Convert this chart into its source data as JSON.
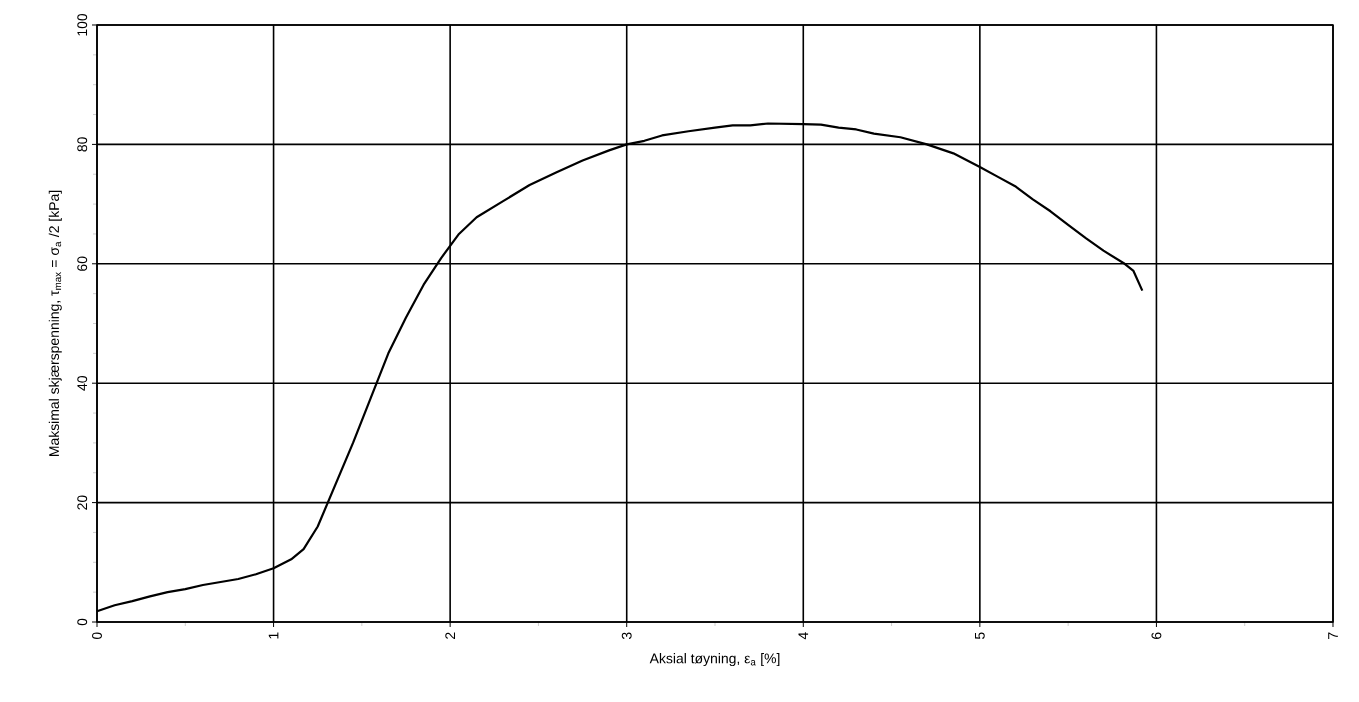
{
  "chart_data": {
    "type": "line",
    "xlabel": "Aksial tøyning, ε$_{a}$ [%]",
    "ylabel": "Maksimal skjærspenning, τ$_{max}$ = σ$_{a}$ /2  [kPa]",
    "xlim": [
      0,
      7
    ],
    "xticks": [
      0,
      1,
      2,
      3,
      4,
      5,
      6,
      7
    ],
    "ylim": [
      0,
      100
    ],
    "yticks": [
      0,
      20,
      40,
      60,
      80,
      100
    ],
    "grid": true,
    "marker": "none",
    "line_style": "solid",
    "series": [
      {
        "color": "#000000",
        "x": [
          0,
          0.1,
          0.2,
          0.3,
          0.4,
          0.5,
          0.6,
          0.7,
          0.8,
          0.9,
          1.0,
          1.1,
          1.17,
          1.25,
          1.35,
          1.45,
          1.55,
          1.65,
          1.75,
          1.85,
          1.95,
          2.05,
          2.15,
          2.3,
          2.45,
          2.6,
          2.75,
          2.9,
          3.0,
          3.1,
          3.2,
          3.35,
          3.5,
          3.6,
          3.7,
          3.8,
          4.0,
          4.1,
          4.2,
          4.3,
          4.4,
          4.55,
          4.7,
          4.85,
          5.0,
          5.1,
          5.2,
          5.3,
          5.4,
          5.5,
          5.6,
          5.7,
          5.82,
          5.87,
          5.92
        ],
        "values": [
          1.8,
          2.8,
          3.5,
          4.3,
          5.0,
          5.5,
          6.2,
          6.7,
          7.2,
          8.0,
          9.0,
          10.5,
          12.2,
          16,
          23,
          30,
          37.5,
          45,
          51,
          56.5,
          61,
          65,
          67.8,
          70.5,
          73.2,
          75.3,
          77.3,
          79,
          80,
          80.6,
          81.5,
          82.2,
          82.8,
          83.2,
          83.2,
          83.5,
          83.4,
          83.3,
          82.8,
          82.5,
          81.8,
          81.2,
          80,
          78.5,
          76.2,
          74.6,
          73,
          70.8,
          68.8,
          66.5,
          64.3,
          62.2,
          60,
          58.8,
          55.5
        ]
      }
    ]
  }
}
